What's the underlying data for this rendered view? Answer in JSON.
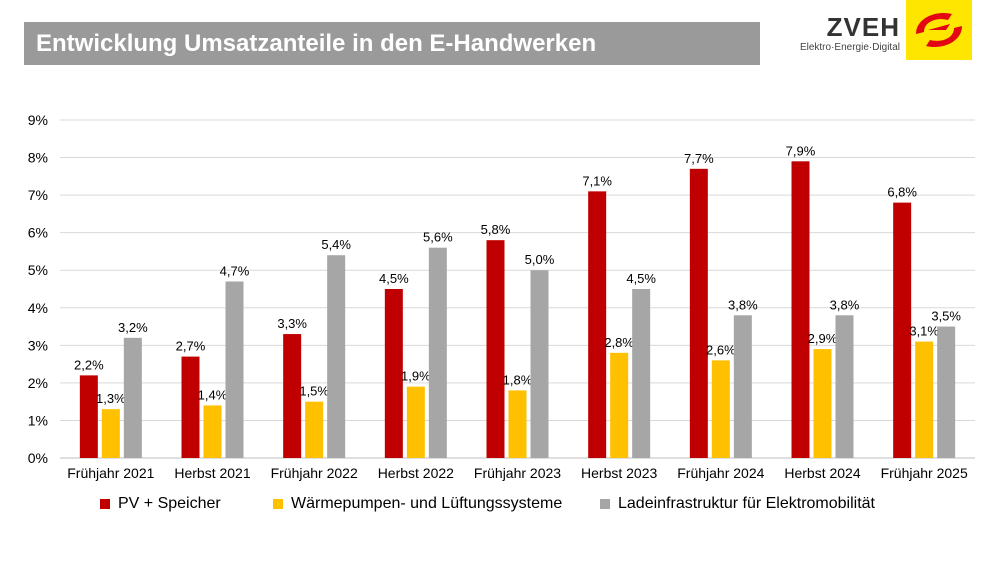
{
  "header": {
    "title": "Entwicklung Umsatzanteile in den E-Handwerken",
    "logo_name": "ZVEH",
    "logo_subtitle": "Elektro·Energie·Digital",
    "logo_color": "#ffe600",
    "logo_accent": "#e30613"
  },
  "chart_data": {
    "type": "bar",
    "categories": [
      "Frühjahr 2021",
      "Herbst 2021",
      "Frühjahr 2022",
      "Herbst 2022",
      "Frühjahr 2023",
      "Herbst 2023",
      "Frühjahr 2024",
      "Herbst 2024",
      "Frühjahr 2025"
    ],
    "series": [
      {
        "name": "PV + Speicher",
        "color": "#c00000",
        "values": [
          2.2,
          2.7,
          3.3,
          4.5,
          5.8,
          7.1,
          7.7,
          7.9,
          6.8
        ],
        "labels": [
          "2,2%",
          "2,7%",
          "3,3%",
          "4,5%",
          "5,8%",
          "7,1%",
          "7,7%",
          "7,9%",
          "6,8%"
        ]
      },
      {
        "name": "Wärmepumpen- und Lüftungssysteme",
        "color": "#ffc000",
        "values": [
          1.3,
          1.4,
          1.5,
          1.9,
          1.8,
          2.8,
          2.6,
          2.9,
          3.1
        ],
        "labels": [
          "1,3%",
          "1,4%",
          "1,5%",
          "1,9%",
          "1,8%",
          "2,8%",
          "2,6%",
          "2,9%",
          "3,1%"
        ]
      },
      {
        "name": "Ladeinfrastruktur für Elektromobilität",
        "color": "#a6a6a6",
        "values": [
          3.2,
          4.7,
          5.4,
          5.6,
          5.0,
          4.5,
          3.8,
          3.8,
          3.5
        ],
        "labels": [
          "3,2%",
          "4,7%",
          "5,4%",
          "5,6%",
          "5,0%",
          "4,5%",
          "3,8%",
          "3,8%",
          "3,5%"
        ]
      }
    ],
    "yticks": [
      "0%",
      "1%",
      "2%",
      "3%",
      "4%",
      "5%",
      "6%",
      "7%",
      "8%",
      "9%"
    ],
    "ylim": [
      0,
      9
    ],
    "xlabel": "",
    "ylabel": "",
    "grid": true,
    "legend_position": "bottom"
  }
}
